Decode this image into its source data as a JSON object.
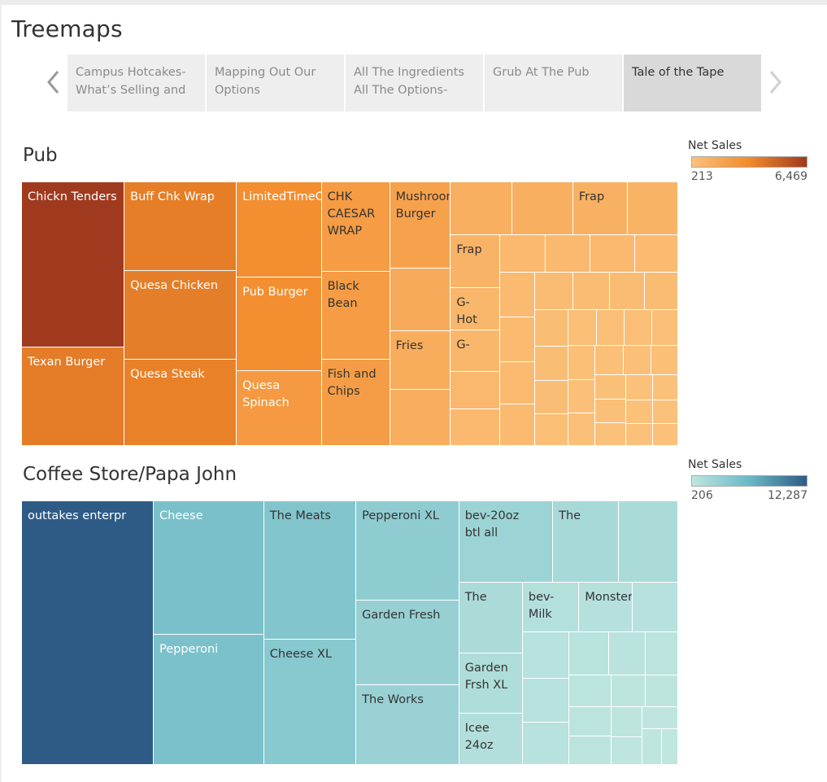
{
  "page": {
    "title": "Treemaps"
  },
  "story_tabs": [
    {
      "label": "Campus Hotcakes-\nWhat’s Selling and",
      "active": false
    },
    {
      "label": "Mapping Out Our\nOptions",
      "active": false
    },
    {
      "label": "All The Ingredients\nAll The Options-",
      "active": false
    },
    {
      "label": "Grub At The Pub",
      "active": false
    },
    {
      "label": "Tale of the Tape",
      "active": true
    }
  ],
  "chart_data": [
    {
      "type": "treemap",
      "title": "Pub",
      "color_legend": {
        "title": "Net Sales",
        "min": 213,
        "max": 6469,
        "min_label": "213",
        "max_label": "6,469",
        "colors": [
          "#fbc17a",
          "#f28a2a",
          "#a03a1f"
        ]
      },
      "items": [
        {
          "label": "Chickn Tenders",
          "value": 6469
        },
        {
          "label": "Texan Burger",
          "value": 3870
        },
        {
          "label": "Buff Chk Wrap",
          "value": 3800
        },
        {
          "label": "Quesa Chicken",
          "value": 3820
        },
        {
          "label": "Quesa Steak",
          "value": 3690
        },
        {
          "label": "LimitedTimeOffer",
          "value": 3080
        },
        {
          "label": "Pub Burger",
          "value": 3060
        },
        {
          "label": "Quesa\nSpinach",
          "value": 2420
        },
        {
          "label": "CHK CAESAR\nWRAP",
          "value": 2330
        },
        {
          "label": "Black Bean",
          "value": 2310
        },
        {
          "label": "Fish and\nChips",
          "value": 2250
        },
        {
          "label": "Mushroom\nBurger",
          "value": 2000
        },
        {
          "label": "",
          "value": 1450
        },
        {
          "label": "Fries",
          "value": 1370
        },
        {
          "label": "",
          "value": 1300
        },
        {
          "label": "",
          "value": 1250
        },
        {
          "label": "",
          "value": 1220
        },
        {
          "label": "Frap",
          "value": 1100
        },
        {
          "label": "",
          "value": 1020
        },
        {
          "label": "Frap",
          "value": 990
        },
        {
          "label": "G-\nHot",
          "value": 800
        },
        {
          "label": "G-",
          "value": 780
        },
        {
          "label": "",
          "value": 700
        },
        {
          "label": "",
          "value": 680
        },
        {
          "label": "",
          "value": 660
        },
        {
          "label": "",
          "value": 650
        },
        {
          "label": "",
          "value": 640
        },
        {
          "label": "",
          "value": 620
        },
        {
          "label": "",
          "value": 610
        },
        {
          "label": "",
          "value": 600
        },
        {
          "label": "",
          "value": 580
        },
        {
          "label": "",
          "value": 560
        },
        {
          "label": "",
          "value": 540
        },
        {
          "label": "",
          "value": 520
        },
        {
          "label": "",
          "value": 500
        },
        {
          "label": "",
          "value": 480
        },
        {
          "label": "",
          "value": 460
        },
        {
          "label": "",
          "value": 440
        },
        {
          "label": "",
          "value": 420
        },
        {
          "label": "",
          "value": 400
        },
        {
          "label": "",
          "value": 390
        },
        {
          "label": "",
          "value": 380
        },
        {
          "label": "",
          "value": 370
        },
        {
          "label": "",
          "value": 360
        },
        {
          "label": "",
          "value": 350
        },
        {
          "label": "",
          "value": 340
        },
        {
          "label": "",
          "value": 330
        },
        {
          "label": "",
          "value": 320
        },
        {
          "label": "",
          "value": 310
        },
        {
          "label": "",
          "value": 300
        },
        {
          "label": "",
          "value": 290
        },
        {
          "label": "",
          "value": 280
        },
        {
          "label": "",
          "value": 270
        },
        {
          "label": "",
          "value": 260
        },
        {
          "label": "",
          "value": 250
        },
        {
          "label": "",
          "value": 240
        },
        {
          "label": "",
          "value": 230
        },
        {
          "label": "",
          "value": 220
        },
        {
          "label": "",
          "value": 213
        }
      ]
    },
    {
      "type": "treemap",
      "title": "Coffee Store/Papa John",
      "color_legend": {
        "title": "Net Sales",
        "min": 206,
        "max": 12287,
        "min_label": "206",
        "max_label": "12,287",
        "colors": [
          "#bfe6df",
          "#6ab8c6",
          "#2e5b86"
        ]
      },
      "items": [
        {
          "label": "outtakes enterpr",
          "value": 12287
        },
        {
          "label": "Cheese",
          "value": 5200
        },
        {
          "label": "Pepperoni",
          "value": 5100
        },
        {
          "label": "The Meats",
          "value": 4500
        },
        {
          "label": "Cheese XL",
          "value": 4100
        },
        {
          "label": "Pepperoni XL",
          "value": 3600
        },
        {
          "label": "Garden Fresh",
          "value": 3100
        },
        {
          "label": "The Works",
          "value": 2900
        },
        {
          "label": "bev-20oz\nbtl all",
          "value": 2700
        },
        {
          "label": "The",
          "value": 1900
        },
        {
          "label": "",
          "value": 1700
        },
        {
          "label": "The",
          "value": 1600
        },
        {
          "label": "Garden\nFrsh XL",
          "value": 1350
        },
        {
          "label": "Icee 24oz",
          "value": 1150
        },
        {
          "label": "bev-Milk",
          "value": 1000
        },
        {
          "label": "Monster",
          "value": 950
        },
        {
          "label": "",
          "value": 800
        },
        {
          "label": "",
          "value": 760
        },
        {
          "label": "",
          "value": 720
        },
        {
          "label": "",
          "value": 700
        },
        {
          "label": "",
          "value": 600
        },
        {
          "label": "",
          "value": 560
        },
        {
          "label": "",
          "value": 500
        },
        {
          "label": "",
          "value": 470
        },
        {
          "label": "",
          "value": 440
        },
        {
          "label": "",
          "value": 420
        },
        {
          "label": "",
          "value": 380
        },
        {
          "label": "",
          "value": 360
        },
        {
          "label": "",
          "value": 330
        },
        {
          "label": "",
          "value": 300
        },
        {
          "label": "",
          "value": 280
        },
        {
          "label": "",
          "value": 250
        },
        {
          "label": "",
          "value": 206
        }
      ]
    }
  ]
}
